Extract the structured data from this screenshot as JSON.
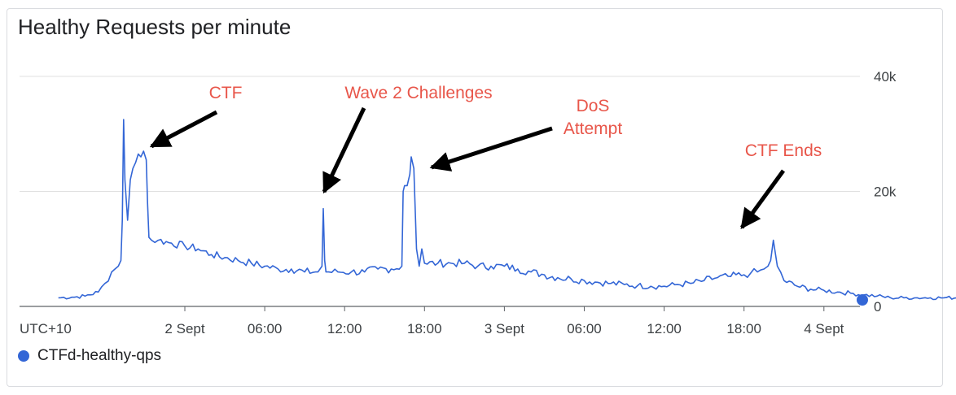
{
  "card": {
    "title": "Healthy Requests per minute"
  },
  "legend": {
    "label": "CTFd-healthy-qps"
  },
  "colors": {
    "series": "#3366d6",
    "annotation": "#e8564a",
    "grid": "#e0e0e0",
    "axis": "#5f6368"
  },
  "chart_data": {
    "type": "line",
    "title": "Healthy Requests per minute",
    "timezone_label": "UTC+10",
    "x_unit": "hours since 2 Sept 00:00 (UTC+10)",
    "x_range": [
      -12.6,
      71.2
    ],
    "ylim": [
      0,
      40000
    ],
    "y_ticks": [
      {
        "value": 0,
        "label": "0"
      },
      {
        "value": 20000,
        "label": "20k"
      },
      {
        "value": 40000,
        "label": "40k"
      }
    ],
    "x_ticks": [
      {
        "value": 0,
        "label": "2 Sept"
      },
      {
        "value": 6,
        "label": "06:00"
      },
      {
        "value": 12,
        "label": "12:00"
      },
      {
        "value": 18,
        "label": "18:00"
      },
      {
        "value": 24,
        "label": "3 Sept"
      },
      {
        "value": 30,
        "label": "06:00"
      },
      {
        "value": 36,
        "label": "12:00"
      },
      {
        "value": 42,
        "label": "18:00"
      },
      {
        "value": 48,
        "label": "4 Sept"
      }
    ],
    "grid": true,
    "legend_position": "bottom-left",
    "series": [
      {
        "name": "CTFd-healthy-qps",
        "x": [
          -9.5,
          -8.5,
          -7.5,
          -6.5,
          -6.0,
          -5.5,
          -5.0,
          -4.8,
          -4.7,
          -4.6,
          -4.5,
          -4.3,
          -4.1,
          -3.9,
          -3.7,
          -3.5,
          -3.3,
          -3.1,
          -2.9,
          -2.8,
          -2.7,
          -2.5,
          -2.0,
          -1.0,
          0.0,
          1.0,
          2.0,
          3.0,
          4.0,
          5.0,
          6.0,
          7.0,
          8.0,
          9.0,
          10.0,
          10.3,
          10.4,
          10.5,
          10.6,
          10.8,
          11.5,
          12.5,
          13.5,
          14.5,
          15.5,
          16.3,
          16.4,
          16.5,
          16.7,
          16.9,
          17.0,
          17.2,
          17.4,
          17.6,
          17.8,
          18.0,
          19.0,
          20.0,
          21.0,
          22.0,
          23.0,
          24.0,
          25.0,
          26.0,
          27.0,
          28.0,
          29.0,
          30.0,
          31.0,
          32.0,
          33.0,
          34.0,
          35.0,
          36.0,
          37.0,
          38.0,
          39.0,
          40.0,
          41.0,
          42.0,
          42.5,
          43.0,
          43.5,
          43.8,
          44.0,
          44.2,
          44.5,
          45.0,
          46.0,
          47.0,
          48.0,
          49.0,
          50.0,
          51.0,
          52.0,
          53.0,
          54.0,
          55.0,
          56.0,
          57.0,
          58.0,
          59.0,
          60.0,
          61.0,
          62.0,
          63.0,
          64.0
        ],
        "y": [
          1500,
          1600,
          1800,
          2500,
          4000,
          6000,
          7000,
          8000,
          15000,
          32500,
          22000,
          15000,
          22000,
          24000,
          25000,
          26500,
          26000,
          27000,
          25500,
          18000,
          12000,
          11500,
          11500,
          11000,
          10500,
          10000,
          9000,
          8500,
          8000,
          7500,
          7000,
          6500,
          6500,
          6000,
          6000,
          7000,
          17000,
          8000,
          6000,
          6000,
          6000,
          6000,
          6000,
          6500,
          6500,
          7000,
          20000,
          21000,
          21000,
          23000,
          26000,
          24000,
          10000,
          7000,
          10000,
          7500,
          7500,
          7500,
          7500,
          7000,
          7000,
          7000,
          6500,
          6000,
          5500,
          5000,
          4800,
          4500,
          4200,
          4000,
          3800,
          3600,
          3500,
          3500,
          3800,
          4000,
          4500,
          5000,
          5200,
          5500,
          5800,
          6000,
          6500,
          7000,
          8000,
          11500,
          7000,
          4500,
          3500,
          3000,
          2800,
          2500,
          2300,
          2000,
          1800,
          1500,
          1500,
          1500,
          1500,
          1500,
          1500,
          1500,
          1500,
          1500,
          1500,
          1500,
          1500
        ]
      }
    ],
    "annotations": [
      {
        "text": "CTF",
        "lines": [
          "CTF"
        ]
      },
      {
        "text": "Wave 2 Challenges",
        "lines": [
          "Wave 2 Challenges"
        ]
      },
      {
        "text": "DoS Attempt",
        "lines": [
          "DoS",
          "Attempt"
        ]
      },
      {
        "text": "CTF Ends",
        "lines": [
          "CTF Ends"
        ]
      }
    ]
  }
}
